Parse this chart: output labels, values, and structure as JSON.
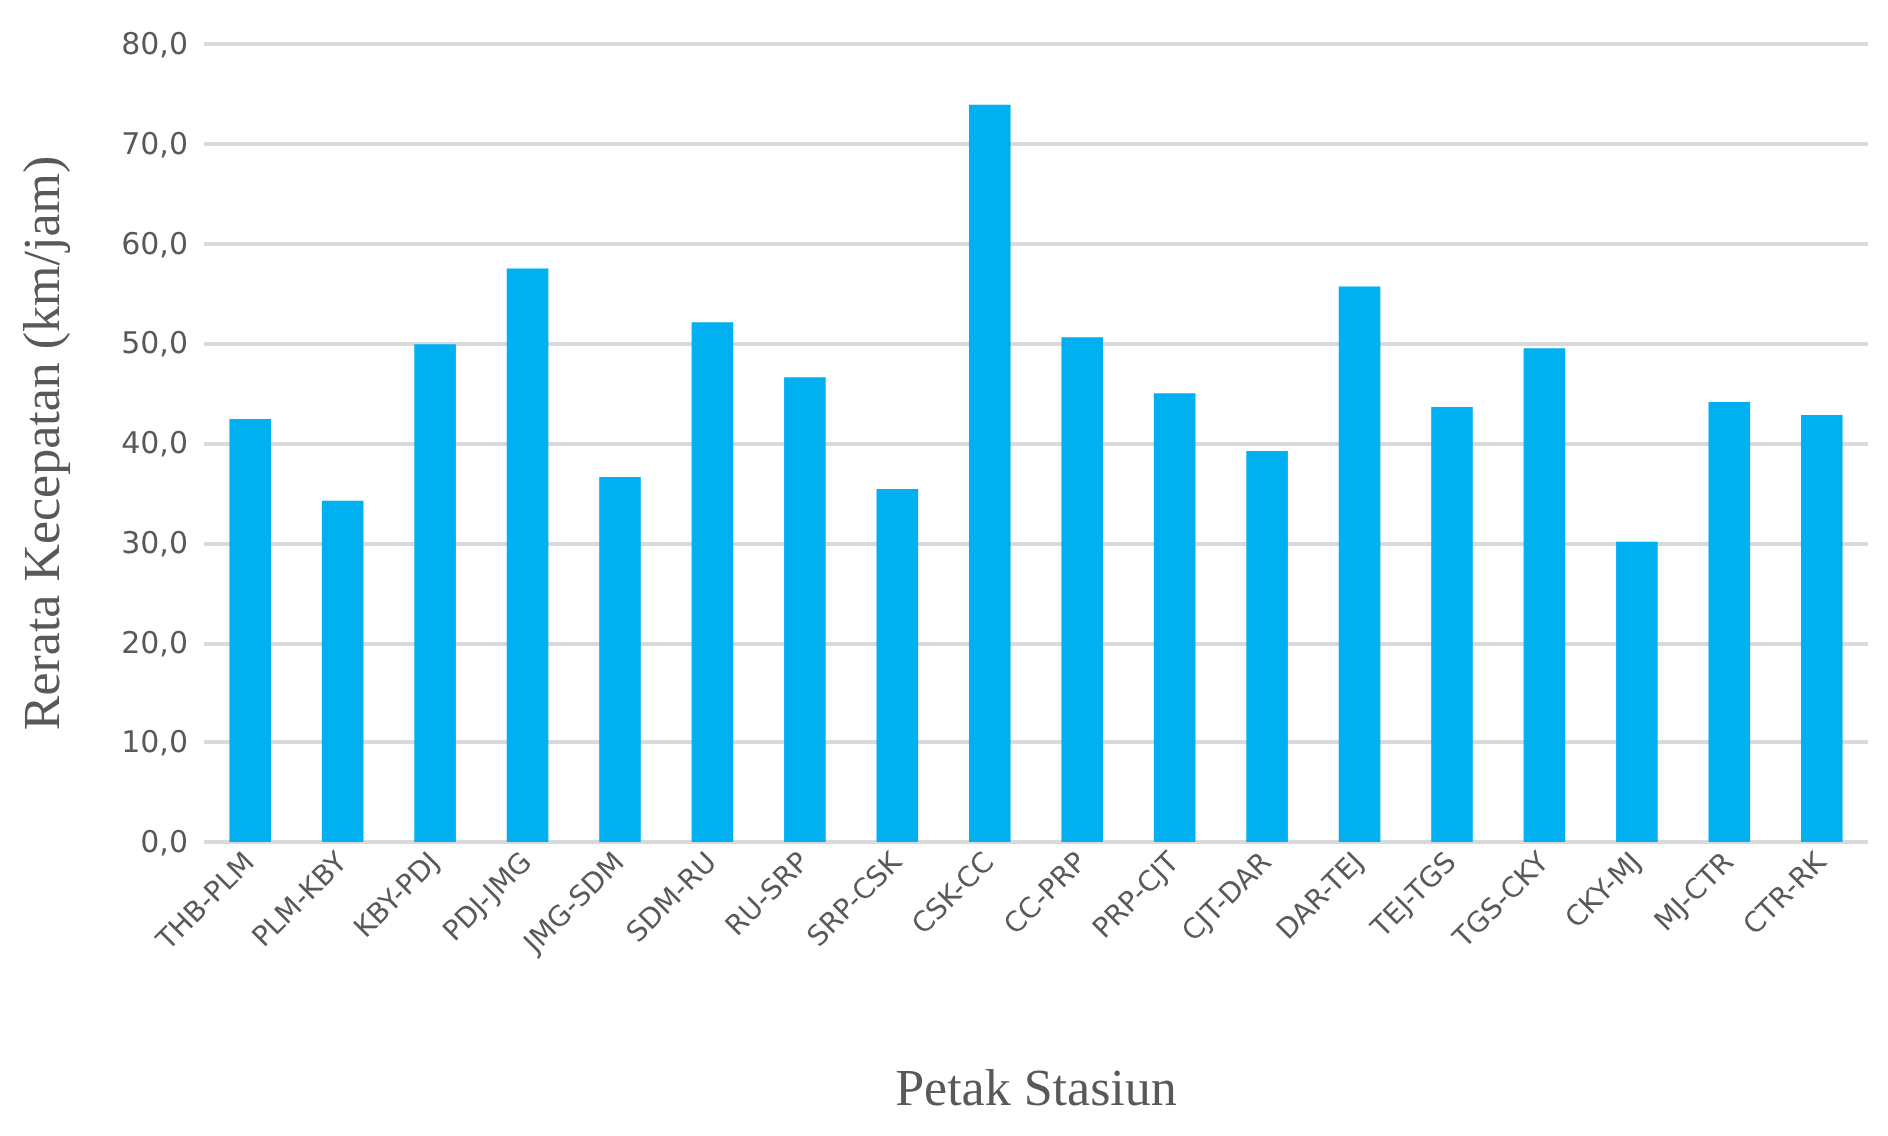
{
  "chart_data": {
    "type": "bar",
    "xlabel": "Petak Stasiun",
    "ylabel": "Rerata Kecepatan (km/jam)",
    "categories": [
      "THB-PLM",
      "PLM-KBY",
      "KBY-PDJ",
      "PDJ-JMG",
      "JMG-SDM",
      "SDM-RU",
      "RU-SRP",
      "SRP-CSK",
      "CSK-CC",
      "CC-PRP",
      "PRP-CJT",
      "CJT-DAR",
      "DAR-TEJ",
      "TEJ-TGS",
      "TGS-CKY",
      "CKY-MJ",
      "MJ-CTR",
      "CTR-RK"
    ],
    "values": [
      42.4,
      34.2,
      49.9,
      57.5,
      36.6,
      52.1,
      46.6,
      35.4,
      73.9,
      50.6,
      45.0,
      39.2,
      55.7,
      43.6,
      49.5,
      30.1,
      44.1,
      42.8
    ],
    "color": "#00b0f0",
    "ylim": [
      0,
      80
    ],
    "yticks": [
      {
        "value": 0,
        "label": "0,0"
      },
      {
        "value": 10,
        "label": "10,0"
      },
      {
        "value": 20,
        "label": "20,0"
      },
      {
        "value": 30,
        "label": "30,0"
      },
      {
        "value": 40,
        "label": "40,0"
      },
      {
        "value": 50,
        "label": "50,0"
      },
      {
        "value": 60,
        "label": "60,0"
      },
      {
        "value": 70,
        "label": "70,0"
      },
      {
        "value": 80,
        "label": "80,0"
      }
    ],
    "grid": "y"
  }
}
